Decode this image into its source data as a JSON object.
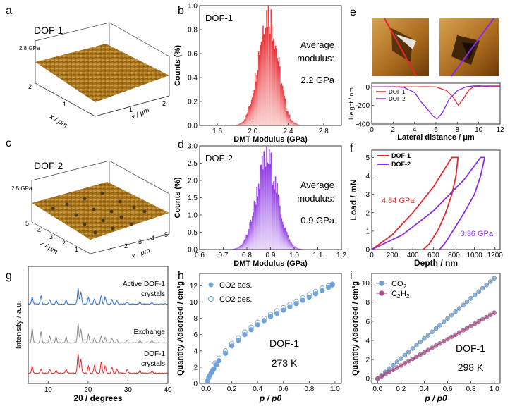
{
  "panels": {
    "a": {
      "letter": "a",
      "title": "DOF 1",
      "gpa": "2.8 GPa",
      "axis": "x / μm",
      "ticks": [
        "2",
        "1",
        "2",
        "1"
      ]
    },
    "b": {
      "letter": "b"
    },
    "c": {
      "letter": "c",
      "title": "DOF 2",
      "gpa": "2.5 GPa",
      "axis": "x / μm",
      "ticks": [
        "5",
        "4",
        "3",
        "2",
        "1",
        "1",
        "2",
        "3",
        "4",
        "5"
      ]
    },
    "d": {
      "letter": "d"
    },
    "e": {
      "letter": "e"
    },
    "f": {
      "letter": "f"
    },
    "g": {
      "letter": "g"
    },
    "h": {
      "letter": "h"
    },
    "i": {
      "letter": "i"
    }
  },
  "colors": {
    "red": "#e8262d",
    "purple": "#8a2be2",
    "blue": "#2f6fd6",
    "gray": "#8a8a8a",
    "lightblue": "#6fa3d6",
    "pink": "#b04a8c"
  },
  "chart_data": [
    {
      "id": "b",
      "type": "bar",
      "label": "DOF-1",
      "annotation": [
        "Average",
        "modulus:",
        "2.2 GPa"
      ],
      "xlabel": "DMT Modulus (GPa)",
      "ylabel": "Counts (%)",
      "xlim": [
        1.4,
        3.0
      ],
      "ylim": [
        0,
        1.0
      ],
      "xticks": [
        "1.6",
        "2.0",
        "2.4",
        "2.8"
      ],
      "yticks": [
        "0.0",
        "0.2",
        "0.4",
        "0.6",
        "0.8",
        "1.0"
      ],
      "distribution": {
        "mean": 2.17,
        "sigma": 0.11,
        "peak": 0.94
      }
    },
    {
      "id": "d",
      "type": "bar",
      "label": "DOF-2",
      "annotation": [
        "Average",
        "modulus:",
        "0.9 GPa"
      ],
      "xlabel": "DMT Modulus (GPa)",
      "ylabel": "Counts (%)",
      "xlim": [
        0.6,
        1.2
      ],
      "ylim": [
        0,
        3.0
      ],
      "xticks": [
        "0.6",
        "0.7",
        "0.8",
        "0.9",
        "1.0",
        "1.1",
        "1.2"
      ],
      "yticks": [
        "0.0",
        "0.5",
        "1.0",
        "1.5",
        "2.0",
        "2.5",
        "3.0"
      ],
      "distribution": {
        "mean": 0.885,
        "sigma": 0.045,
        "peak": 2.6
      }
    },
    {
      "id": "e",
      "type": "line",
      "xlabel": "Lateral distance / μm",
      "ylabel": "Height / nm",
      "xlim": [
        0,
        12
      ],
      "ylim": [
        -400,
        40
      ],
      "xticks": [
        "0",
        "2",
        "4",
        "6",
        "8",
        "10",
        "12"
      ],
      "yticks": [
        "0",
        "-200",
        "-400"
      ],
      "series": [
        {
          "name": "DOF 1",
          "x": [
            0,
            2,
            4,
            5,
            6,
            7,
            7.6,
            8.1,
            8.6,
            9.1,
            9.6,
            10.5,
            12
          ],
          "y": [
            0,
            2,
            0,
            2,
            0,
            -40,
            -110,
            -200,
            -120,
            -30,
            5,
            10,
            10
          ]
        },
        {
          "name": "DOF 2",
          "x": [
            0,
            2,
            3,
            4,
            4.6,
            5.2,
            5.7,
            6.1,
            6.6,
            7.2,
            8,
            8.8,
            9.5,
            10.1,
            11,
            12
          ],
          "y": [
            0,
            0,
            -5,
            -60,
            -160,
            -240,
            -310,
            -345,
            -280,
            -140,
            -40,
            0,
            10,
            12,
            0,
            0
          ]
        }
      ]
    },
    {
      "id": "f",
      "type": "line",
      "xlabel": "Depth / nm",
      "ylabel": "Load / mN",
      "xlim": [
        0,
        1250
      ],
      "ylim": [
        0,
        5.4
      ],
      "xticks": [
        "0",
        "200",
        "400",
        "600",
        "800",
        "1000",
        "1200"
      ],
      "yticks": [
        "0",
        "1",
        "2",
        "3",
        "4",
        "5"
      ],
      "annotations": [
        "4.84 GPa",
        "3.36 GPa"
      ],
      "series": [
        {
          "name": "DOF-1",
          "x": [
            0,
            200,
            400,
            600,
            780,
            840,
            820,
            780,
            720,
            650,
            560,
            500
          ],
          "y": [
            0,
            0.8,
            2.0,
            3.4,
            5.0,
            5.0,
            4.0,
            3.0,
            2.0,
            1.1,
            0.3,
            0
          ]
        },
        {
          "name": "DOF-2",
          "x": [
            0,
            300,
            600,
            900,
            1060,
            1100,
            1060,
            1000,
            900,
            800,
            720,
            660
          ],
          "y": [
            0,
            0.8,
            2.1,
            3.8,
            5.0,
            5.0,
            4.0,
            3.0,
            2.0,
            1.1,
            0.4,
            0
          ]
        }
      ]
    },
    {
      "id": "g",
      "type": "line",
      "xlabel": "2θ / degrees",
      "ylabel": "Intensity / a.u.",
      "xlim": [
        5,
        40
      ],
      "xticks": [
        "10",
        "20",
        "30",
        "40"
      ],
      "series": [
        {
          "name": "Active DOF-1 crystals",
          "label": [
            "Active DOF-1",
            "crystals"
          ]
        },
        {
          "name": "Exchange",
          "label": [
            "Exchange"
          ]
        },
        {
          "name": "DOF-1 crystals",
          "label": [
            "DOF-1",
            "crystals"
          ]
        }
      ],
      "peaks": [
        6.0,
        8.2,
        10.4,
        12.0,
        14.5,
        17.5,
        18.2,
        20.1,
        21.6,
        23.3,
        24.3,
        26.0,
        27.2,
        29.8,
        33.0,
        36.0
      ]
    },
    {
      "id": "h",
      "type": "scatter",
      "xlabel": "p / p0",
      "ylabel": "Quantity Adsorbed / cm³g",
      "label": [
        "DOF-1",
        "273 K"
      ],
      "xlim": [
        -0.05,
        1.05
      ],
      "ylim": [
        0,
        13.5
      ],
      "xticks": [
        "0.0",
        "0.2",
        "0.4",
        "0.6",
        "0.8",
        "1.0"
      ],
      "yticks": [
        "0",
        "2",
        "4",
        "6",
        "8",
        "10",
        "12"
      ],
      "series": [
        {
          "name": "CO2 ads.",
          "x": [
            0.01,
            0.02,
            0.03,
            0.04,
            0.05,
            0.06,
            0.08,
            0.1,
            0.15,
            0.2,
            0.25,
            0.3,
            0.35,
            0.4,
            0.45,
            0.5,
            0.55,
            0.6,
            0.65,
            0.7,
            0.75,
            0.8,
            0.85,
            0.9,
            0.95,
            0.98
          ],
          "y": [
            0.3,
            0.7,
            1.0,
            1.3,
            1.6,
            1.8,
            2.3,
            2.8,
            3.7,
            4.6,
            5.3,
            6.0,
            6.6,
            7.2,
            7.7,
            8.2,
            8.6,
            9.0,
            9.4,
            9.8,
            10.2,
            10.6,
            11.0,
            11.4,
            11.8,
            12.1
          ]
        },
        {
          "name": "CO2 des.",
          "x": [
            0.98,
            0.95,
            0.9,
            0.85,
            0.8,
            0.75,
            0.7,
            0.65,
            0.6,
            0.55,
            0.5,
            0.45,
            0.4,
            0.35,
            0.3,
            0.25,
            0.2,
            0.15,
            0.1,
            0.07
          ],
          "y": [
            12.2,
            12.0,
            11.7,
            11.3,
            10.9,
            10.5,
            10.1,
            9.7,
            9.3,
            8.9,
            8.5,
            8.0,
            7.5,
            6.9,
            6.3,
            5.6,
            4.9,
            4.0,
            3.1,
            2.5
          ]
        }
      ]
    },
    {
      "id": "i",
      "type": "line",
      "xlabel": "p / p0",
      "ylabel": "Quantity Adsorbed / cm³g",
      "label": [
        "DOF-1",
        "298 K"
      ],
      "xlim": [
        -0.05,
        1.05
      ],
      "ylim": [
        -0.5,
        11
      ],
      "xticks": [
        "0.0",
        "0.2",
        "0.4",
        "0.6",
        "0.8",
        "1.0"
      ],
      "yticks": [
        "0",
        "2",
        "4",
        "6",
        "8",
        "10"
      ],
      "series": [
        {
          "name": "CO2",
          "slope": 10.5
        },
        {
          "name": "C2H2",
          "slope": 6.9
        }
      ]
    }
  ]
}
